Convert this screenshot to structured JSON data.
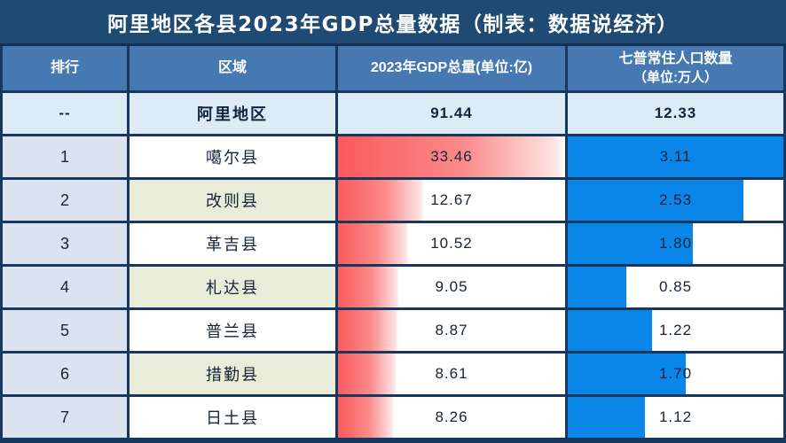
{
  "title": "阿里地区各县2023年GDP总量数据（制表：数据说经济）",
  "header": {
    "rank": "排行",
    "region": "区域",
    "gdp": "2023年GDP总量(单位:亿)",
    "pop_line1": "七普常住人口数量",
    "pop_line2": "（单位:万人）"
  },
  "summary": {
    "rank": "--",
    "region": "阿里地区",
    "gdp": "91.44",
    "pop": "12.33"
  },
  "rows": [
    {
      "rank": "1",
      "region": "噶尔县",
      "gdp": "33.46",
      "pop": "3.11",
      "gdp_pct": 100,
      "pop_pct": 100
    },
    {
      "rank": "2",
      "region": "改则县",
      "gdp": "12.67",
      "pop": "2.53",
      "gdp_pct": 37.9,
      "pop_pct": 81.4
    },
    {
      "rank": "3",
      "region": "革吉县",
      "gdp": "10.52",
      "pop": "1.80",
      "gdp_pct": 31.4,
      "pop_pct": 57.9
    },
    {
      "rank": "4",
      "region": "札达县",
      "gdp": "9.05",
      "pop": "0.85",
      "gdp_pct": 27.0,
      "pop_pct": 27.3
    },
    {
      "rank": "5",
      "region": "普兰县",
      "gdp": "8.87",
      "pop": "1.22",
      "gdp_pct": 26.5,
      "pop_pct": 39.2
    },
    {
      "rank": "6",
      "region": "措勤县",
      "gdp": "8.61",
      "pop": "1.70",
      "gdp_pct": 25.7,
      "pop_pct": 54.7
    },
    {
      "rank": "7",
      "region": "日土县",
      "gdp": "8.26",
      "pop": "1.12",
      "gdp_pct": 24.7,
      "pop_pct": 36.0
    }
  ],
  "colors": {
    "title_bar": "#1f4a73",
    "header_blue": "#4678b2",
    "border_navy": "#17375e",
    "summary_row_bg": "#dcebf5",
    "rank_col_bg": "#dbe3f1",
    "region_alt_green": "#e8ecd9",
    "gdp_bar_red": "#fa5a5c",
    "pop_bar_blue": "#0a86e8"
  },
  "chart_data": {
    "type": "table",
    "title": "阿里地区各县2023年GDP总量数据（制表：数据说经济）",
    "columns": [
      "排行",
      "区域",
      "2023年GDP总量(单位:亿)",
      "七普常住人口数量（单位:万人）"
    ],
    "summary_row": [
      "--",
      "阿里地区",
      91.44,
      12.33
    ],
    "categories": [
      "噶尔县",
      "改则县",
      "革吉县",
      "札达县",
      "普兰县",
      "措勤县",
      "日土县"
    ],
    "series": [
      {
        "name": "2023年GDP总量(单位:亿)",
        "values": [
          33.46,
          12.67,
          10.52,
          9.05,
          8.87,
          8.61,
          8.26
        ],
        "bar_style": "red-gradient-databar",
        "bar_max": 33.46
      },
      {
        "name": "七普常住人口数量(单位:万人)",
        "values": [
          3.11,
          2.53,
          1.8,
          0.85,
          1.22,
          1.7,
          1.12
        ],
        "bar_style": "solid-blue-databar",
        "bar_max": 3.11
      }
    ],
    "ranks": [
      1,
      2,
      3,
      4,
      5,
      6,
      7
    ],
    "legend": "none",
    "grid": "table-borders"
  }
}
